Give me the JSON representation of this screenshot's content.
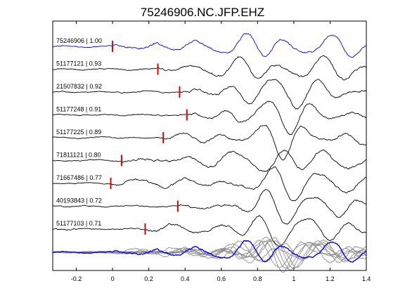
{
  "figure": {
    "title": "75246906.NC.JFP.EHZ"
  },
  "chart_data": {
    "type": "line",
    "title": "75246906.NC.JFP.EHZ",
    "xlabel": "",
    "ylabel": "",
    "xlim": [
      -0.33,
      1.4
    ],
    "xticks": [
      -0.2,
      0,
      0.2,
      0.4,
      0.6,
      0.8,
      1,
      1.2,
      1.4
    ],
    "xtick_labels": [
      "-0.2",
      "0",
      "0.2",
      "0.4",
      "0.6",
      "0.8",
      "1",
      "1.2",
      "1.4"
    ],
    "grid": false,
    "colors": {
      "reference": "#0000ff",
      "trace": "#000000",
      "pick": "#dd0000",
      "overlay": "#8c8c8c"
    },
    "series": [
      {
        "name": "75246906 | 1.00",
        "pick": 0.0,
        "color": "#0000ff"
      },
      {
        "name": "51177121 | 0.93",
        "pick": 0.25,
        "color": "#000000"
      },
      {
        "name": "21507832 | 0.92",
        "pick": 0.37,
        "color": "#000000"
      },
      {
        "name": "51177248 | 0.91",
        "pick": 0.41,
        "color": "#000000"
      },
      {
        "name": "51177225 | 0.89",
        "pick": 0.28,
        "color": "#000000"
      },
      {
        "name": "71811121 | 0.80",
        "pick": 0.05,
        "color": "#000000"
      },
      {
        "name": "71667486 | 0.77",
        "pick": -0.01,
        "color": "#000000"
      },
      {
        "name": "40193843 | 0.72",
        "pick": 0.36,
        "color": "#000000"
      },
      {
        "name": "51177103 | 0.71",
        "pick": 0.18,
        "color": "#000000"
      }
    ]
  }
}
